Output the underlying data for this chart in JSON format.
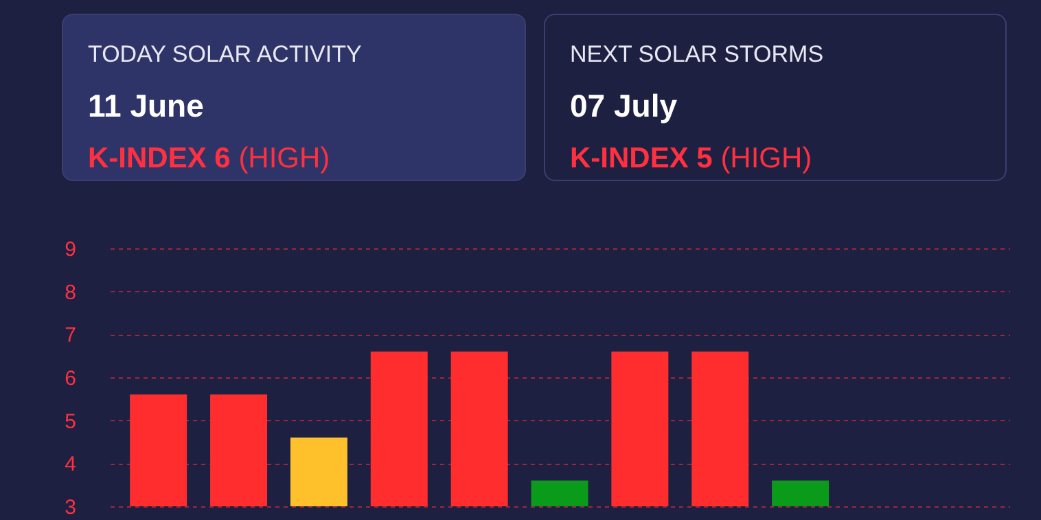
{
  "chart_data": [
    {
      "type": "other",
      "title": "TODAY SOLAR ACTIVITY",
      "subtitle": "11 June",
      "annotations": [
        "K-INDEX 6",
        "(HIGH)"
      ]
    },
    {
      "type": "other",
      "title": "NEXT SOLAR STORMS",
      "subtitle": "07 July",
      "annotations": [
        "K-INDEX 5",
        "(HIGH)"
      ]
    },
    {
      "type": "bar",
      "categories": [
        null,
        null,
        null,
        null,
        null,
        null,
        null,
        null,
        null,
        null,
        null
      ],
      "values": [
        5.6,
        5.6,
        4.6,
        6.6,
        6.6,
        3.6,
        6.6,
        6.6,
        3.6,
        null,
        null
      ],
      "colors": [
        "#ff2d2d",
        "#ff2d2d",
        "#ffc12b",
        "#ff2d2d",
        "#ff2d2d",
        "#0a9b1a",
        "#ff2d2d",
        "#ff2d2d",
        "#0a9b1a",
        "#ff2d2d",
        "#ff2d2d"
      ],
      "ylim": [
        3,
        9
      ],
      "yticks": [
        3,
        4,
        5,
        6,
        7,
        8,
        9
      ],
      "grid": true,
      "tick_labels": "y"
    }
  ]
}
